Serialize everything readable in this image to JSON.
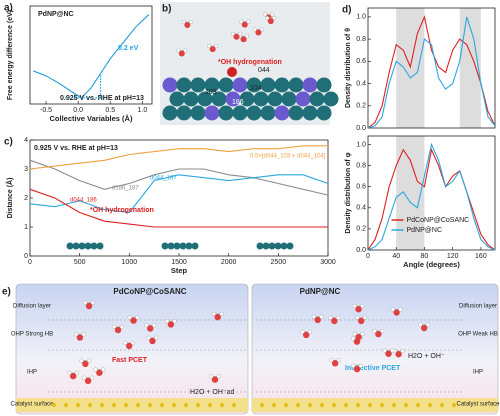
{
  "chart_data": [
    {
      "type": "line",
      "panel": "a)",
      "xlabel": "Collective Variables (Å)",
      "ylabel": "Free energy difference (eV)",
      "x": [
        -0.7,
        -0.5,
        -0.3,
        -0.1,
        0.05,
        0.2,
        0.35,
        0.5,
        0.7,
        0.9,
        1.1
      ],
      "series": [
        {
          "color": "#1f9bd6",
          "values": [
            0.22,
            0.18,
            0.12,
            0.05,
            0.0,
            0.08,
            0.2,
            0.32,
            0.45,
            0.58,
            0.68
          ]
        }
      ],
      "xlim": [
        -0.75,
        1.15
      ],
      "ylim": [
        -0.05,
        0.75
      ],
      "xticks": [
        -0.5,
        {
          "value": 0,
          "label": "0.0"
        },
        0.5,
        {
          "value": 1,
          "label": "1.0"
        }
      ],
      "annotations": [
        "PdNP@NC",
        "0.2 eV",
        "0.925 V vs. RHE at pH=13"
      ]
    },
    {
      "type": "line",
      "panel": "c)",
      "xlabel": "Step",
      "ylabel": "Distance (Å)",
      "x": [
        0,
        250,
        500,
        750,
        1000,
        1250,
        1500,
        1750,
        2000,
        2250,
        2500,
        2750,
        3000
      ],
      "series": [
        {
          "name": "d186_187",
          "color": "#8c8c8c",
          "values": [
            3.3,
            3.0,
            2.6,
            2.3,
            2.5,
            2.8,
            3.0,
            3.0,
            2.8,
            2.7,
            2.5,
            2.3,
            2.1
          ]
        },
        {
          "name": "0.5×[d044_103 + d044_104]",
          "color": "#f0a040",
          "values": [
            3.0,
            3.1,
            3.2,
            3.3,
            3.5,
            3.6,
            3.7,
            3.7,
            3.6,
            3.7,
            3.7,
            3.8,
            3.8
          ]
        },
        {
          "name": "d044_187",
          "color": "#2aa8e0",
          "values": [
            1.8,
            1.7,
            1.9,
            1.6,
            1.5,
            2.6,
            2.8,
            2.7,
            2.6,
            2.7,
            2.8,
            2.8,
            2.5
          ]
        },
        {
          "name": "d044_186",
          "color": "#e02020",
          "values": [
            2.3,
            2.0,
            1.5,
            1.2,
            1.1,
            1.0,
            1.0,
            1.0,
            1.0,
            1.0,
            1.0,
            1.0,
            1.0
          ]
        }
      ],
      "xlim": [
        0,
        3000
      ],
      "ylim": [
        0,
        4
      ],
      "xticks": [
        0,
        500,
        1000,
        1500,
        2000,
        2500,
        3000
      ],
      "yticks": [
        0,
        1,
        2,
        3,
        4
      ],
      "annotations": [
        "0.925 V vs. RHE at pH=13",
        "*OH hydrogenation"
      ]
    },
    {
      "type": "line",
      "panel": "d)",
      "ylabel": "Density distribution of θ",
      "x": [
        0,
        10,
        20,
        30,
        40,
        50,
        60,
        70,
        80,
        90,
        100,
        110,
        120,
        130,
        140,
        150,
        160,
        170,
        180
      ],
      "series": [
        {
          "color": "#e02020",
          "values": [
            0,
            0.05,
            0.2,
            0.5,
            0.75,
            0.7,
            0.55,
            0.85,
            1.0,
            0.7,
            0.55,
            0.5,
            0.7,
            0.8,
            0.75,
            0.6,
            0.4,
            0.15,
            0.02
          ]
        },
        {
          "color": "#2aa8e0",
          "values": [
            0,
            0.02,
            0.1,
            0.4,
            0.6,
            0.55,
            0.45,
            0.5,
            0.8,
            0.75,
            0.45,
            0.35,
            0.4,
            0.6,
            1.0,
            0.8,
            0.4,
            0.1,
            0.02
          ]
        }
      ],
      "xlim": [
        0,
        180
      ],
      "ylim": [
        0,
        1.08
      ],
      "yticks": [
        {
          "value": 0,
          "label": "0.0"
        },
        0.2,
        0.4,
        0.6,
        0.8,
        {
          "value": 1,
          "label": "1.0"
        }
      ],
      "bands": [
        [
          40,
          80
        ],
        [
          130,
          160
        ]
      ]
    },
    {
      "type": "line",
      "xlabel": "Angle (degrees)",
      "ylabel": "Density distribution of φ",
      "x": [
        0,
        10,
        20,
        30,
        40,
        50,
        60,
        70,
        80,
        90,
        100,
        110,
        120,
        130,
        140,
        150,
        160,
        170,
        180
      ],
      "series": [
        {
          "name": "PdCoNP@CoSANC",
          "color": "#e02020",
          "values": [
            0,
            0.1,
            0.3,
            0.6,
            0.8,
            0.95,
            0.85,
            0.65,
            0.6,
            0.95,
            0.8,
            0.6,
            0.7,
            0.75,
            0.55,
            0.35,
            0.15,
            0.05,
            0
          ]
        },
        {
          "name": "PdNP@NC",
          "color": "#2aa8e0",
          "values": [
            0,
            0.03,
            0.1,
            0.3,
            0.5,
            0.55,
            0.45,
            0.4,
            0.7,
            1.0,
            0.85,
            0.6,
            0.65,
            0.75,
            0.55,
            0.3,
            0.1,
            0.03,
            0
          ]
        }
      ],
      "xlim": [
        0,
        180
      ],
      "ylim": [
        0,
        1.08
      ],
      "xticks": [
        0,
        40,
        80,
        120,
        160
      ],
      "yticks": [
        {
          "value": 0,
          "label": "0.0"
        },
        0.2,
        0.4,
        0.6,
        0.8,
        {
          "value": 1,
          "label": "1.0"
        }
      ],
      "bands": [
        [
          40,
          80
        ]
      ],
      "legend": "lower center"
    }
  ],
  "panel_b": {
    "label": "b)",
    "texts": [
      "*OH hydrogenation",
      "044",
      "186",
      "103",
      "104"
    ]
  },
  "panel_e": {
    "label": "e)",
    "left": {
      "title": "PdCoNP@CoSANC",
      "layers": [
        "Diffusion layer",
        "OHP Strong HB",
        "IHP",
        "Catalyst surface"
      ],
      "texts": [
        "Fast PCET",
        "H2O + OH⁻ad"
      ]
    },
    "right": {
      "title": "PdNP@NC",
      "layers": [
        "Diffusion layer",
        "OHP Weak HB",
        "IHP",
        "Catalyst surface"
      ],
      "texts": [
        "Ineffective PCET",
        "H2O + OH⁻"
      ]
    }
  }
}
